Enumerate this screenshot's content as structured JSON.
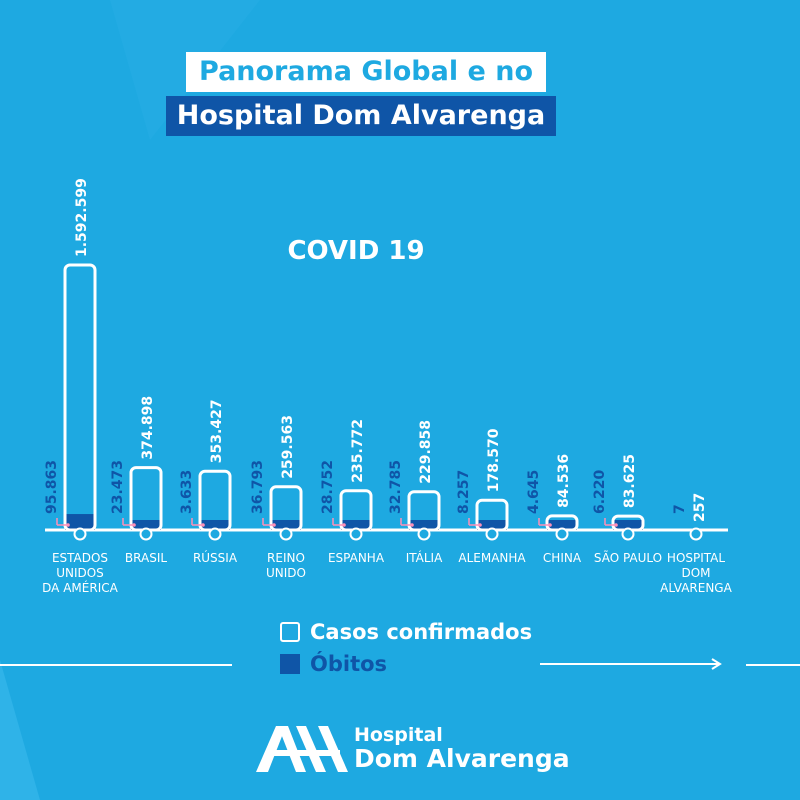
{
  "title_line1": "Panorama Global e no",
  "title_line2": "Hospital Dom Alvarenga",
  "chart_data": {
    "type": "bar",
    "title": "COVID 19",
    "categories": [
      [
        "ESTADOS",
        "UNIDOS",
        "DA AMÉRICA"
      ],
      [
        "BRASIL"
      ],
      [
        "RÚSSIA"
      ],
      [
        "REINO",
        "UNIDO"
      ],
      [
        "ESPANHA"
      ],
      [
        "ITÁLIA"
      ],
      [
        "ALEMANHA"
      ],
      [
        "CHINA"
      ],
      [
        "SÃO PAULO"
      ],
      [
        "HOSPITAL",
        "DOM",
        "ALVARENGA"
      ]
    ],
    "series": [
      {
        "name": "Casos confirmados",
        "values": [
          1592599,
          374898,
          353427,
          259563,
          235772,
          229858,
          178570,
          84536,
          83625,
          257
        ],
        "labels": [
          "1.592.599",
          "374.898",
          "353.427",
          "259.563",
          "235.772",
          "229.858",
          "178.570",
          "84.536",
          "83.625",
          "257"
        ]
      },
      {
        "name": "Óbitos",
        "values": [
          95863,
          23473,
          3633,
          36793,
          28752,
          32785,
          8257,
          4645,
          6220,
          7
        ],
        "labels": [
          "95.863",
          "23.473",
          "3.633",
          "36.793",
          "28.752",
          "32.785",
          "8.257",
          "4.645",
          "6.220",
          "7"
        ]
      }
    ],
    "legend_position": "bottom-center",
    "grid": false
  },
  "legend": {
    "cases_label": "Casos confirmados",
    "deaths_label": "Óbitos"
  },
  "logo": {
    "line1": "Hospital",
    "line2": "Dom Alvarenga"
  },
  "colors": {
    "background": "#1ea9e1",
    "dark_blue": "#0f55a7",
    "white": "#ffffff",
    "pink": "#ff8fb8"
  }
}
